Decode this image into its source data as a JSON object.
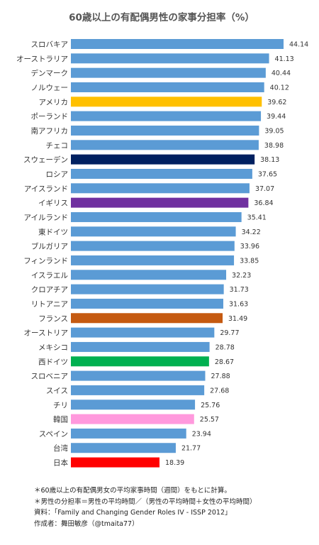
{
  "chart_data": {
    "type": "bar",
    "orientation": "horizontal",
    "title": "60歳以上の有配偶男性の家事分担率（%）",
    "categories": [
      "スロバキア",
      "オーストラリア",
      "デンマーク",
      "ノルウェー",
      "アメリカ",
      "ポーランド",
      "南アフリカ",
      "チェコ",
      "スウェーデン",
      "ロシア",
      "アイスランド",
      "イギリス",
      "アイルランド",
      "東ドイツ",
      "ブルガリア",
      "フィンランド",
      "イスラエル",
      "クロアチア",
      "リトアニア",
      "フランス",
      "オーストリア",
      "メキシコ",
      "西ドイツ",
      "スロベニア",
      "スイス",
      "チリ",
      "韓国",
      "スペイン",
      "台湾",
      "日本"
    ],
    "values": [
      44.14,
      41.13,
      40.44,
      40.12,
      39.62,
      39.44,
      39.05,
      38.98,
      38.13,
      37.65,
      37.07,
      36.84,
      35.41,
      34.22,
      33.96,
      33.85,
      32.23,
      31.73,
      31.63,
      31.49,
      29.77,
      28.78,
      28.67,
      27.88,
      27.68,
      25.76,
      25.57,
      23.94,
      21.77,
      18.39
    ],
    "value_labels": [
      "44.14",
      "41.13",
      "40.44",
      "40.12",
      "39.62",
      "39.44",
      "39.05",
      "38.98",
      "38.13",
      "37.65",
      "37.07",
      "36.84",
      "35.41",
      "34.22",
      "33.96",
      "33.85",
      "32.23",
      "31.73",
      "31.63",
      "31.49",
      "29.77",
      "28.78",
      "28.67",
      "27.88",
      "27.68",
      "25.76",
      "25.57",
      "23.94",
      "21.77",
      "18.39"
    ],
    "colors": [
      "#5b9bd5",
      "#5b9bd5",
      "#5b9bd5",
      "#5b9bd5",
      "#ffc000",
      "#5b9bd5",
      "#5b9bd5",
      "#5b9bd5",
      "#002060",
      "#5b9bd5",
      "#5b9bd5",
      "#7030a0",
      "#5b9bd5",
      "#5b9bd5",
      "#5b9bd5",
      "#5b9bd5",
      "#5b9bd5",
      "#5b9bd5",
      "#5b9bd5",
      "#c55a11",
      "#5b9bd5",
      "#5b9bd5",
      "#00b050",
      "#5b9bd5",
      "#5b9bd5",
      "#5b9bd5",
      "#ff99dd",
      "#5b9bd5",
      "#5b9bd5",
      "#ff0000"
    ],
    "xlim": [
      0,
      44.14
    ],
    "grid": false,
    "legend": "none"
  },
  "notes": [
    "＊60歳以上の有配偶男女の平均家事時間（週間）をもとに計算。",
    "＊男性の分担率＝男性の平均時間／（男性の平均時間＋女性の平均時間）",
    "資料：「Family and Changing Gender Roles IV - ISSP 2012」",
    "作成者：舞田敏彦（@tmaita77）"
  ]
}
